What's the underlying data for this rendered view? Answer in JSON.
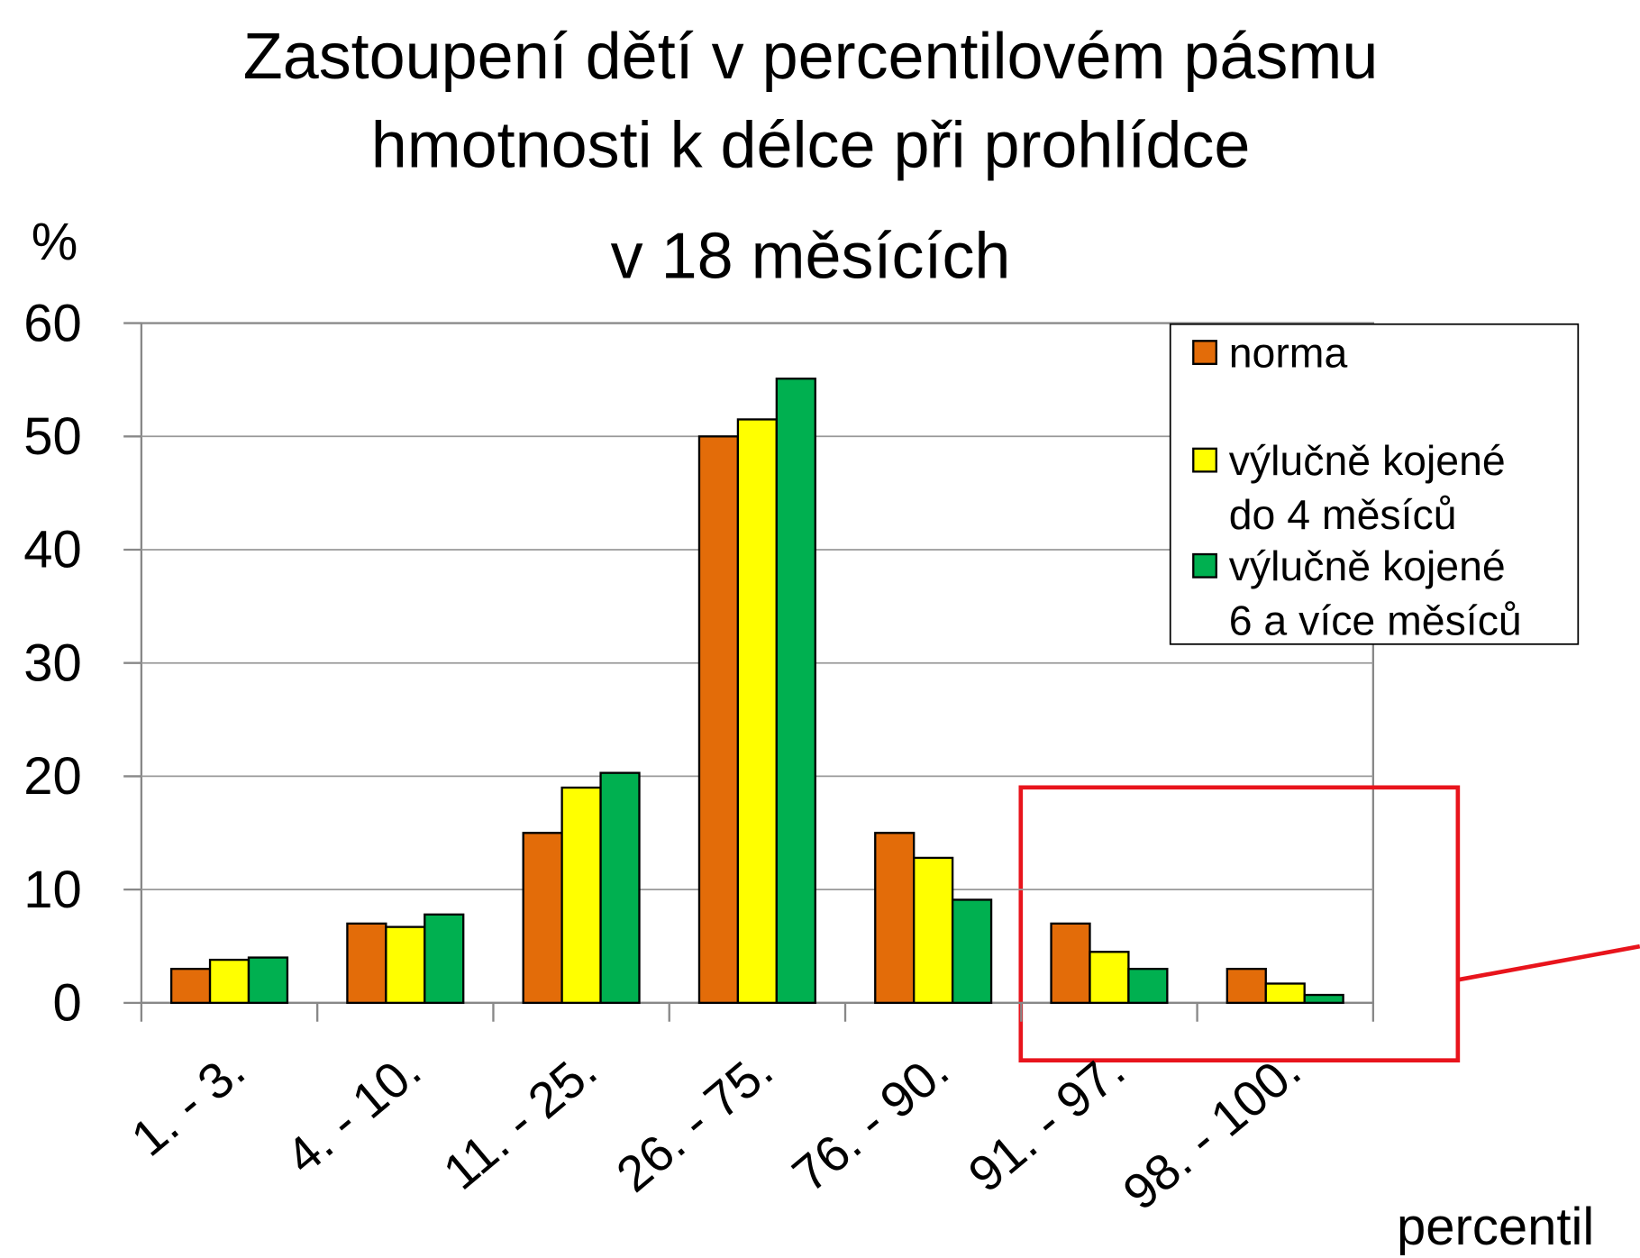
{
  "chart_data": {
    "type": "bar",
    "title": [
      "Zastoupení dětí v percentilovém pásmu",
      "hmotnosti k délce při prohlídce",
      "v 18 měsících"
    ],
    "y_label": "%",
    "x_label": "percentil",
    "categories": [
      "1. - 3.",
      "4. - 10.",
      "11. - 25.",
      "26. - 75.",
      "76. - 90.",
      "91. - 97.",
      "98. - 100."
    ],
    "series": [
      {
        "name": "norma",
        "color": "#e36c09",
        "values": [
          3,
          7,
          15,
          50,
          15,
          7,
          3
        ]
      },
      {
        "name": "výlučně kojené do 4 měsíců",
        "color": "#ffff00",
        "values": [
          3.8,
          6.7,
          19,
          51.5,
          12.8,
          4.5,
          1.7
        ]
      },
      {
        "name": "výlučně kojené 6 a více měsíců",
        "color": "#00b050",
        "values": [
          4,
          7.8,
          20.3,
          55.1,
          9.1,
          3,
          0.7
        ]
      }
    ],
    "ylim": [
      0,
      60
    ],
    "yticks": [
      0,
      10,
      20,
      30,
      40,
      50,
      60
    ],
    "grid": true,
    "legend": "upper right"
  }
}
